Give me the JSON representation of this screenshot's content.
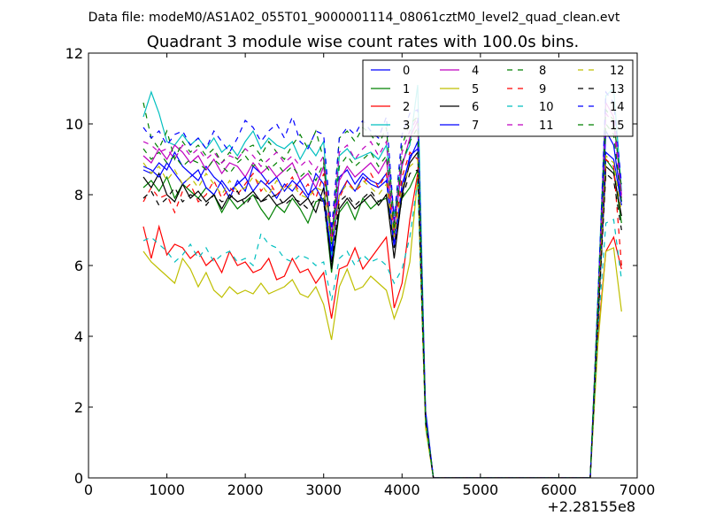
{
  "figure": {
    "supertitle": "Data file: modeM0/AS1A02_055T01_9000001114_08061cztM0_level2_quad_clean.evt"
  },
  "chart_data": {
    "type": "line",
    "title": "Quadrant 3 module wise count rates with 100.0s bins.",
    "xlabel": "",
    "ylabel": "",
    "x_offset_label": "+2.28155e8",
    "xlim": [
      0,
      7000
    ],
    "ylim": [
      0,
      12
    ],
    "xticks": [
      "0",
      "1000",
      "2000",
      "3000",
      "4000",
      "5000",
      "6000",
      "7000"
    ],
    "yticks": [
      "0",
      "2",
      "4",
      "6",
      "8",
      "10",
      "12"
    ],
    "grid": false,
    "legend": {
      "placement": "top-right",
      "columns": 4
    },
    "x": [
      700,
      800,
      900,
      1000,
      1100,
      1200,
      1300,
      1400,
      1500,
      1600,
      1700,
      1800,
      1900,
      2000,
      2100,
      2200,
      2300,
      2400,
      2500,
      2600,
      2700,
      2800,
      2900,
      3000,
      3100,
      3200,
      3300,
      3400,
      3500,
      3600,
      3700,
      3800,
      3900,
      4000,
      4100,
      4200,
      4300,
      4400,
      4500,
      5000,
      5500,
      6000,
      6400,
      6500,
      6600,
      6700,
      6800
    ],
    "series": [
      {
        "name": "0",
        "color": "#0000ff",
        "dash": "solid",
        "values": [
          8.7,
          8.6,
          8.9,
          8.7,
          9.2,
          8.8,
          8.6,
          8.4,
          8.8,
          8.5,
          8.3,
          7.9,
          8.4,
          8.1,
          8.8,
          8.6,
          8.3,
          8.5,
          8.1,
          8.4,
          8.2,
          7.9,
          8.6,
          8.3,
          6.1,
          8.5,
          8.7,
          8.3,
          8.6,
          8.4,
          8.3,
          8.6,
          6.6,
          8.1,
          9.1,
          9.3,
          1.9,
          0,
          0,
          0,
          0,
          0,
          0,
          4.6,
          9.8,
          9.4,
          7.8
        ]
      },
      {
        "name": "1",
        "color": "#008000",
        "dash": "solid",
        "values": [
          8.2,
          8.4,
          8.1,
          8.5,
          7.9,
          8.3,
          8.1,
          7.9,
          8.2,
          8.0,
          7.5,
          7.9,
          7.6,
          7.8,
          8.0,
          7.6,
          7.3,
          7.7,
          7.5,
          7.9,
          7.6,
          7.2,
          7.8,
          7.9,
          5.8,
          7.5,
          7.8,
          7.3,
          7.9,
          7.6,
          7.8,
          7.9,
          6.9,
          7.9,
          8.2,
          8.7,
          1.6,
          0,
          0,
          0,
          0,
          0,
          0,
          4.4,
          9.0,
          8.7,
          7.2
        ]
      },
      {
        "name": "2",
        "color": "#ff0000",
        "dash": "solid",
        "values": [
          7.1,
          6.2,
          7.1,
          6.3,
          6.6,
          6.5,
          6.2,
          6.4,
          6.0,
          6.2,
          5.8,
          6.4,
          6.0,
          6.1,
          5.8,
          5.9,
          6.2,
          5.6,
          5.7,
          6.2,
          5.8,
          5.9,
          5.5,
          5.8,
          4.5,
          5.9,
          6.0,
          6.5,
          5.9,
          6.2,
          6.5,
          6.8,
          4.8,
          5.5,
          7.3,
          8.6,
          1.5,
          0,
          0,
          0,
          0,
          0,
          0,
          4.0,
          6.4,
          6.8,
          5.9
        ]
      },
      {
        "name": "3",
        "color": "#00bfbf",
        "dash": "solid",
        "values": [
          10.2,
          10.9,
          10.3,
          9.5,
          9.4,
          9.7,
          9.4,
          9.6,
          9.3,
          9.6,
          9.2,
          9.4,
          9.1,
          9.5,
          9.8,
          9.3,
          9.6,
          9.4,
          9.3,
          9.5,
          9.0,
          9.4,
          9.1,
          9.5,
          6.3,
          9.1,
          9.3,
          9.0,
          9.1,
          9.2,
          9.0,
          9.4,
          7.4,
          8.9,
          9.4,
          11.1,
          1.8,
          0,
          0,
          0,
          0,
          0,
          0,
          5.2,
          10.8,
          11.0,
          8.1
        ]
      },
      {
        "name": "4",
        "color": "#bf00bf",
        "dash": "solid",
        "values": [
          9.1,
          8.9,
          9.3,
          9.0,
          9.4,
          9.2,
          8.9,
          9.1,
          8.7,
          9.0,
          8.6,
          8.9,
          8.8,
          8.5,
          8.9,
          8.6,
          8.8,
          8.5,
          8.7,
          8.9,
          8.4,
          8.6,
          8.2,
          8.8,
          6.9,
          8.4,
          8.8,
          8.5,
          8.7,
          8.9,
          8.6,
          9.0,
          7.0,
          8.8,
          9.6,
          10.1,
          1.7,
          0,
          0,
          0,
          0,
          0,
          0,
          4.9,
          10.6,
          10.2,
          8.0
        ]
      },
      {
        "name": "5",
        "color": "#bfbf00",
        "dash": "solid",
        "values": [
          6.4,
          6.1,
          5.9,
          5.7,
          5.5,
          6.2,
          5.9,
          5.4,
          5.8,
          5.3,
          5.1,
          5.4,
          5.2,
          5.3,
          5.2,
          5.5,
          5.2,
          5.3,
          5.4,
          5.6,
          5.2,
          5.1,
          5.4,
          4.9,
          3.9,
          5.4,
          5.9,
          5.3,
          5.4,
          5.7,
          5.5,
          5.3,
          4.5,
          5.1,
          6.1,
          8.5,
          1.4,
          0,
          0,
          0,
          0,
          0,
          0,
          3.8,
          6.4,
          6.5,
          4.7
        ]
      },
      {
        "name": "6",
        "color": "#000000",
        "dash": "solid",
        "values": [
          8.5,
          8.2,
          8.6,
          8.0,
          7.8,
          8.3,
          7.9,
          8.1,
          7.8,
          8.0,
          7.6,
          8.0,
          7.8,
          7.9,
          8.1,
          7.8,
          8.0,
          7.7,
          7.8,
          8.0,
          7.7,
          7.9,
          7.5,
          8.2,
          5.9,
          7.6,
          7.9,
          7.6,
          7.8,
          8.0,
          7.7,
          8.0,
          6.2,
          8.0,
          8.9,
          9.2,
          1.7,
          0,
          0,
          0,
          0,
          0,
          0,
          4.5,
          8.8,
          8.6,
          7.4
        ]
      },
      {
        "name": "7",
        "color": "#0000ff",
        "dash": "solid",
        "values": [
          8.8,
          8.7,
          8.5,
          8.9,
          8.6,
          8.3,
          8.5,
          8.7,
          8.2,
          8.0,
          8.4,
          8.1,
          8.3,
          8.5,
          8.1,
          8.4,
          8.2,
          7.9,
          8.3,
          8.1,
          8.4,
          8.0,
          8.2,
          7.8,
          6.4,
          8.0,
          8.4,
          8.1,
          8.5,
          8.3,
          8.2,
          8.4,
          6.5,
          8.3,
          9.0,
          9.5,
          1.8,
          0,
          0,
          0,
          0,
          0,
          0,
          4.7,
          9.2,
          9.0,
          7.7
        ]
      },
      {
        "name": "8",
        "color": "#008000",
        "dash": "dashed",
        "values": [
          10.6,
          9.6,
          9.3,
          9.8,
          9.0,
          9.5,
          9.2,
          9.4,
          9.1,
          9.3,
          8.9,
          9.2,
          9.0,
          9.3,
          9.4,
          9.1,
          9.5,
          9.2,
          9.0,
          9.4,
          9.7,
          9.3,
          9.8,
          9.0,
          6.6,
          9.6,
          9.8,
          9.5,
          9.9,
          9.7,
          9.4,
          9.9,
          7.2,
          9.4,
          10.0,
          10.2,
          1.7,
          0,
          0,
          0,
          0,
          0,
          0,
          5.0,
          10.4,
          10.1,
          8.2
        ]
      },
      {
        "name": "9",
        "color": "#ff0000",
        "dash": "dashed",
        "values": [
          7.8,
          8.2,
          7.9,
          8.0,
          7.5,
          8.1,
          8.3,
          7.8,
          8.0,
          8.4,
          7.9,
          8.2,
          8.0,
          8.3,
          8.6,
          8.1,
          8.4,
          8.0,
          8.2,
          8.5,
          8.0,
          8.3,
          7.9,
          8.6,
          6.7,
          7.9,
          8.4,
          8.1,
          8.3,
          8.6,
          8.2,
          8.6,
          6.8,
          8.5,
          9.2,
          9.0,
          1.6,
          0,
          0,
          0,
          0,
          0,
          0,
          4.6,
          9.0,
          8.8,
          6.0
        ]
      },
      {
        "name": "10",
        "color": "#00bfbf",
        "dash": "dashed",
        "values": [
          6.7,
          6.8,
          6.6,
          6.4,
          6.1,
          6.3,
          6.6,
          6.2,
          6.5,
          6.1,
          6.3,
          6.4,
          6.1,
          6.2,
          6.0,
          6.9,
          6.6,
          6.5,
          6.2,
          6.1,
          6.3,
          6.2,
          6.0,
          6.1,
          5.0,
          6.2,
          6.4,
          6.0,
          6.3,
          6.1,
          6.2,
          6.0,
          5.5,
          5.9,
          6.8,
          8.4,
          1.5,
          0,
          0,
          0,
          0,
          0,
          0,
          4.2,
          7.2,
          7.3,
          5.6
        ]
      },
      {
        "name": "11",
        "color": "#bf00bf",
        "dash": "dashed",
        "values": [
          9.5,
          9.4,
          9.2,
          9.3,
          9.0,
          9.4,
          9.1,
          9.3,
          9.0,
          9.2,
          8.9,
          9.1,
          9.0,
          9.3,
          9.1,
          8.8,
          9.0,
          9.2,
          8.9,
          9.1,
          8.8,
          9.0,
          8.7,
          9.1,
          6.8,
          9.2,
          9.4,
          9.0,
          9.3,
          9.5,
          9.1,
          9.5,
          7.1,
          9.2,
          9.8,
          10.2,
          1.7,
          0,
          0,
          0,
          0,
          0,
          0,
          5.0,
          10.3,
          10.0,
          7.9
        ]
      },
      {
        "name": "12",
        "color": "#bfbf00",
        "dash": "dashed",
        "values": [
          8.9,
          8.6,
          8.8,
          8.4,
          8.7,
          8.3,
          8.5,
          8.2,
          8.6,
          8.3,
          8.0,
          8.4,
          8.1,
          8.2,
          8.5,
          8.3,
          8.0,
          8.4,
          8.1,
          8.3,
          8.0,
          7.9,
          8.2,
          8.1,
          6.6,
          8.0,
          8.3,
          8.1,
          8.4,
          8.2,
          8.0,
          8.3,
          6.8,
          8.2,
          8.8,
          9.0,
          1.6,
          0,
          0,
          0,
          0,
          0,
          0,
          4.6,
          9.1,
          8.9,
          7.5
        ]
      },
      {
        "name": "13",
        "color": "#000000",
        "dash": "dashed",
        "values": [
          7.9,
          8.1,
          7.7,
          7.9,
          8.2,
          7.8,
          8.0,
          7.9,
          7.7,
          8.0,
          7.8,
          7.9,
          8.1,
          7.7,
          8.0,
          7.8,
          7.9,
          8.0,
          7.7,
          7.9,
          7.8,
          7.6,
          7.9,
          7.8,
          6.0,
          7.8,
          8.0,
          7.7,
          7.9,
          8.1,
          7.8,
          8.0,
          6.5,
          7.9,
          8.6,
          8.7,
          1.6,
          0,
          0,
          0,
          0,
          0,
          0,
          4.4,
          8.6,
          8.4,
          7.0
        ]
      },
      {
        "name": "14",
        "color": "#0000ff",
        "dash": "dashed",
        "values": [
          9.9,
          9.6,
          9.8,
          9.4,
          9.7,
          9.8,
          9.4,
          9.6,
          9.3,
          9.8,
          9.5,
          9.2,
          9.6,
          10.1,
          9.9,
          9.5,
          9.8,
          10.0,
          9.6,
          10.2,
          9.5,
          9.3,
          9.8,
          9.7,
          7.0,
          9.6,
          9.9,
          9.7,
          10.1,
          9.8,
          9.6,
          10.2,
          7.3,
          9.7,
          10.3,
          10.4,
          1.8,
          0,
          0,
          0,
          0,
          0,
          0,
          5.1,
          10.9,
          10.6,
          8.3
        ]
      },
      {
        "name": "15",
        "color": "#008000",
        "dash": "dashed",
        "values": [
          9.3,
          9.0,
          9.2,
          8.9,
          9.1,
          8.8,
          9.0,
          8.9,
          8.7,
          9.0,
          8.8,
          8.6,
          8.9,
          9.1,
          8.8,
          9.0,
          8.7,
          8.9,
          8.6,
          8.8,
          8.5,
          8.7,
          8.4,
          8.9,
          6.7,
          8.8,
          9.1,
          8.8,
          9.0,
          9.2,
          8.8,
          9.1,
          7.0,
          8.9,
          9.5,
          9.9,
          1.7,
          0,
          0,
          0,
          0,
          0,
          0,
          4.9,
          10.0,
          9.7,
          7.8
        ]
      }
    ]
  }
}
